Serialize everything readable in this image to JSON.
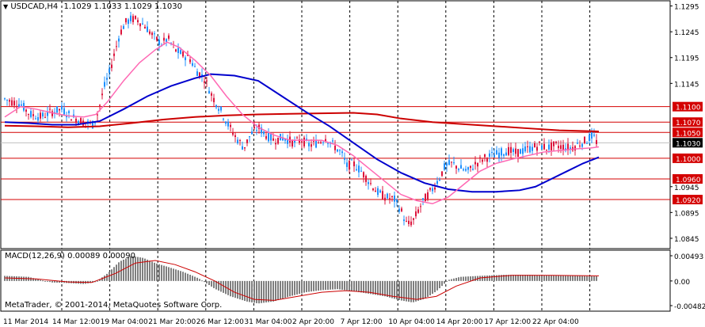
{
  "header": {
    "symbol_tf": "USDCAD,H4",
    "ohlc": "1.1029 1.1033 1.1029 1.1030"
  },
  "macd_panel": {
    "title": "MACD(12,26,9) 0.00089 0.00090",
    "y_ticks": [
      "0.00493",
      "0.00",
      "-0.00482"
    ]
  },
  "watermark": "MetaTrader, © 2001-2014, MetaQuotes Software Corp.",
  "time_axis": [
    "11 Mar 2014",
    "14 Mar 12:00",
    "19 Mar 04:00",
    "21 Mar 20:00",
    "26 Mar 12:00",
    "31 Mar 04:00",
    "2 Apr 20:00",
    "7 Apr 12:00",
    "10 Apr 04:00",
    "14 Apr 20:00",
    "17 Apr 12:00",
    "22 Apr 04:00"
  ],
  "price_axis": [
    "1.1295",
    "1.1245",
    "1.1195",
    "1.1145",
    "1.0945",
    "1.0895",
    "1.0845"
  ],
  "hlines": [
    {
      "price": 1.11,
      "label": "1.1100"
    },
    {
      "price": 1.107,
      "label": "1.1070"
    },
    {
      "price": 1.105,
      "label": "1.1050"
    },
    {
      "price": 1.1,
      "label": "1.1000"
    },
    {
      "price": 1.096,
      "label": "1.0960"
    },
    {
      "price": 1.092,
      "label": "1.0920"
    }
  ],
  "current_price": {
    "price": 1.103,
    "label": "1.1030"
  },
  "colors": {
    "up_candle": "#1e90ff",
    "down_candle": "#dc143c",
    "hline": "#d40000",
    "ma_fast": "#ff69b4",
    "ma_mid": "#0000cd",
    "ma_slow": "#cc0000",
    "macd_hist": "#7f7f7f",
    "macd_signal": "#cc0000",
    "price_tag_bg": "#d40000",
    "current_tag_bg": "#000000"
  },
  "chart_data": {
    "type": "candlestick",
    "instrument": "USDCAD",
    "timeframe": "H4",
    "ylim": [
      1.0825,
      1.1305
    ],
    "price_path": [
      [
        0,
        1.1115
      ],
      [
        8,
        1.111
      ],
      [
        20,
        1.1105
      ],
      [
        32,
        1.1085
      ],
      [
        45,
        1.108
      ],
      [
        60,
        1.109
      ],
      [
        72,
        1.1095
      ],
      [
        85,
        1.108
      ],
      [
        100,
        1.107
      ],
      [
        112,
        1.1065
      ],
      [
        118,
        1.109
      ],
      [
        125,
        1.1135
      ],
      [
        132,
        1.1165
      ],
      [
        138,
        1.12
      ],
      [
        145,
        1.124
      ],
      [
        152,
        1.1262
      ],
      [
        160,
        1.127
      ],
      [
        168,
        1.1268
      ],
      [
        178,
        1.1255
      ],
      [
        188,
        1.1235
      ],
      [
        198,
        1.1222
      ],
      [
        206,
        1.1232
      ],
      [
        215,
        1.121
      ],
      [
        225,
        1.12
      ],
      [
        233,
        1.1195
      ],
      [
        242,
        1.117
      ],
      [
        252,
        1.1155
      ],
      [
        262,
        1.112
      ],
      [
        272,
        1.1095
      ],
      [
        282,
        1.1065
      ],
      [
        292,
        1.104
      ],
      [
        302,
        1.102
      ],
      [
        310,
        1.1045
      ],
      [
        320,
        1.106
      ],
      [
        330,
        1.1045
      ],
      [
        340,
        1.1035
      ],
      [
        352,
        1.104
      ],
      [
        365,
        1.103
      ],
      [
        375,
        1.1035
      ],
      [
        385,
        1.1025
      ],
      [
        395,
        1.103
      ],
      [
        405,
        1.104
      ],
      [
        415,
        1.1025
      ],
      [
        425,
        1.101
      ],
      [
        432,
        1.0985
      ],
      [
        440,
        1.099
      ],
      [
        450,
        1.0975
      ],
      [
        460,
        1.0955
      ],
      [
        470,
        1.0935
      ],
      [
        480,
        1.0925
      ],
      [
        492,
        1.092
      ],
      [
        500,
        1.09
      ],
      [
        508,
        1.087
      ],
      [
        516,
        1.088
      ],
      [
        524,
        1.0905
      ],
      [
        532,
        1.0925
      ],
      [
        540,
        1.094
      ],
      [
        548,
        1.096
      ],
      [
        556,
        1.0985
      ],
      [
        565,
        1.099
      ],
      [
        575,
        1.098
      ],
      [
        585,
        1.0975
      ],
      [
        595,
        1.099
      ],
      [
        605,
        1.1
      ],
      [
        615,
        1.1005
      ],
      [
        625,
        1.101
      ],
      [
        635,
        1.1015
      ],
      [
        645,
        1.101
      ],
      [
        655,
        1.1015
      ],
      [
        665,
        1.102
      ],
      [
        675,
        1.1025
      ],
      [
        685,
        1.102
      ],
      [
        695,
        1.1025
      ],
      [
        705,
        1.1022
      ],
      [
        715,
        1.102
      ],
      [
        725,
        1.1028
      ],
      [
        735,
        1.1035
      ],
      [
        742,
        1.1045
      ],
      [
        748,
        1.103
      ]
    ],
    "ma_fast_path": [
      [
        0,
        1.108
      ],
      [
        20,
        1.11
      ],
      [
        40,
        1.1095
      ],
      [
        60,
        1.1088
      ],
      [
        80,
        1.1082
      ],
      [
        100,
        1.108
      ],
      [
        115,
        1.1085
      ],
      [
        130,
        1.111
      ],
      [
        150,
        1.115
      ],
      [
        170,
        1.1185
      ],
      [
        190,
        1.121
      ],
      [
        205,
        1.1225
      ],
      [
        220,
        1.1215
      ],
      [
        240,
        1.119
      ],
      [
        260,
        1.116
      ],
      [
        280,
        1.112
      ],
      [
        300,
        1.1085
      ],
      [
        320,
        1.106
      ],
      [
        340,
        1.1045
      ],
      [
        360,
        1.1035
      ],
      [
        380,
        1.1035
      ],
      [
        400,
        1.1035
      ],
      [
        420,
        1.1025
      ],
      [
        440,
        1.1005
      ],
      [
        460,
        1.098
      ],
      [
        480,
        1.0955
      ],
      [
        500,
        1.093
      ],
      [
        520,
        1.0918
      ],
      [
        540,
        1.0912
      ],
      [
        560,
        1.0925
      ],
      [
        580,
        1.095
      ],
      [
        600,
        1.0975
      ],
      [
        620,
        1.099
      ],
      [
        640,
        1.0998
      ],
      [
        660,
        1.1005
      ],
      [
        680,
        1.1012
      ],
      [
        700,
        1.1015
      ],
      [
        720,
        1.1018
      ],
      [
        740,
        1.102
      ],
      [
        750,
        1.1022
      ]
    ],
    "ma_mid_path": [
      [
        0,
        1.107
      ],
      [
        30,
        1.1068
      ],
      [
        60,
        1.1065
      ],
      [
        90,
        1.1065
      ],
      [
        120,
        1.1072
      ],
      [
        150,
        1.1095
      ],
      [
        180,
        1.112
      ],
      [
        210,
        1.114
      ],
      [
        240,
        1.1155
      ],
      [
        260,
        1.1163
      ],
      [
        290,
        1.116
      ],
      [
        320,
        1.115
      ],
      [
        350,
        1.112
      ],
      [
        380,
        1.109
      ],
      [
        410,
        1.1062
      ],
      [
        440,
        1.103
      ],
      [
        470,
        1.0998
      ],
      [
        500,
        1.0972
      ],
      [
        530,
        1.0952
      ],
      [
        560,
        1.094
      ],
      [
        590,
        1.0935
      ],
      [
        620,
        1.0935
      ],
      [
        650,
        1.0938
      ],
      [
        670,
        1.0945
      ],
      [
        690,
        1.096
      ],
      [
        710,
        1.0975
      ],
      [
        730,
        1.099
      ],
      [
        750,
        1.1002
      ]
    ],
    "ma_slow_path": [
      [
        0,
        1.1063
      ],
      [
        40,
        1.1062
      ],
      [
        80,
        1.106
      ],
      [
        120,
        1.1062
      ],
      [
        160,
        1.1068
      ],
      [
        200,
        1.1075
      ],
      [
        240,
        1.108
      ],
      [
        280,
        1.1083
      ],
      [
        320,
        1.1085
      ],
      [
        360,
        1.1086
      ],
      [
        400,
        1.1087
      ],
      [
        440,
        1.1088
      ],
      [
        470,
        1.1085
      ],
      [
        500,
        1.1077
      ],
      [
        540,
        1.107
      ],
      [
        580,
        1.1066
      ],
      [
        620,
        1.1062
      ],
      [
        660,
        1.1058
      ],
      [
        700,
        1.1054
      ],
      [
        750,
        1.1052
      ]
    ],
    "macd_hist": [
      [
        0,
        0.001
      ],
      [
        30,
        0.0008
      ],
      [
        45,
        0.0002
      ],
      [
        60,
        -0.0003
      ],
      [
        80,
        -0.0004
      ],
      [
        100,
        -0.0006
      ],
      [
        115,
        -0.0002
      ],
      [
        130,
        0.0015
      ],
      [
        145,
        0.0038
      ],
      [
        160,
        0.0049
      ],
      [
        175,
        0.0045
      ],
      [
        190,
        0.0035
      ],
      [
        205,
        0.0028
      ],
      [
        225,
        0.0018
      ],
      [
        245,
        0.0005
      ],
      [
        265,
        -0.0015
      ],
      [
        285,
        -0.003
      ],
      [
        305,
        -0.004
      ],
      [
        320,
        -0.0044
      ],
      [
        340,
        -0.004
      ],
      [
        360,
        -0.003
      ],
      [
        380,
        -0.0022
      ],
      [
        400,
        -0.0018
      ],
      [
        420,
        -0.0016
      ],
      [
        440,
        -0.002
      ],
      [
        460,
        -0.0025
      ],
      [
        480,
        -0.003
      ],
      [
        500,
        -0.0038
      ],
      [
        515,
        -0.0042
      ],
      [
        530,
        -0.0035
      ],
      [
        545,
        -0.002
      ],
      [
        560,
        0.0002
      ],
      [
        575,
        0.0008
      ],
      [
        600,
        0.001
      ],
      [
        630,
        0.0012
      ],
      [
        660,
        0.0012
      ],
      [
        690,
        0.0011
      ],
      [
        720,
        0.001
      ],
      [
        750,
        0.0009
      ]
    ],
    "macd_signal": [
      [
        0,
        0.0006
      ],
      [
        40,
        0.0004
      ],
      [
        80,
        -0.0002
      ],
      [
        110,
        -0.0003
      ],
      [
        140,
        0.0015
      ],
      [
        165,
        0.0035
      ],
      [
        190,
        0.004
      ],
      [
        215,
        0.0032
      ],
      [
        240,
        0.0018
      ],
      [
        265,
        0.0
      ],
      [
        290,
        -0.0022
      ],
      [
        315,
        -0.0036
      ],
      [
        340,
        -0.0038
      ],
      [
        370,
        -0.003
      ],
      [
        400,
        -0.0022
      ],
      [
        430,
        -0.0019
      ],
      [
        460,
        -0.0022
      ],
      [
        490,
        -0.003
      ],
      [
        520,
        -0.0036
      ],
      [
        545,
        -0.003
      ],
      [
        570,
        -0.001
      ],
      [
        600,
        0.0006
      ],
      [
        640,
        0.0011
      ],
      [
        690,
        0.0011
      ],
      [
        750,
        0.001
      ]
    ],
    "macd_ylim": [
      -0.00482,
      0.00493
    ]
  }
}
